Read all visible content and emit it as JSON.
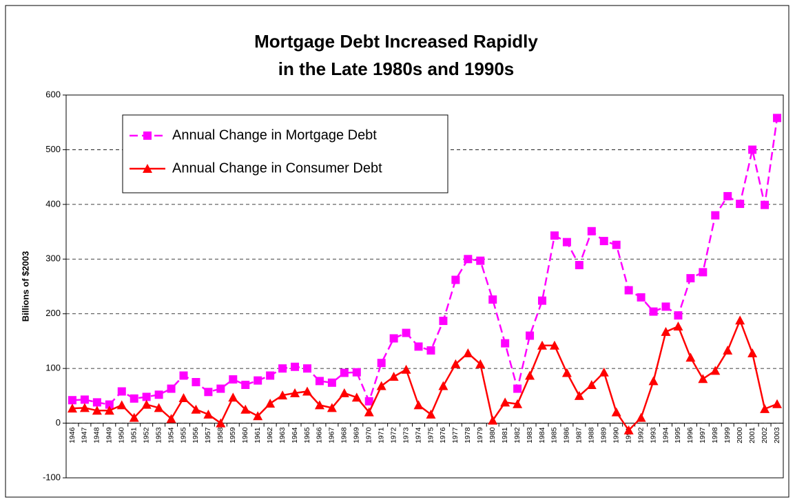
{
  "chart_data": {
    "type": "line",
    "title": [
      "Mortgage Debt Increased Rapidly",
      "in the Late 1980s and 1990s"
    ],
    "y_label": "Billions of $2003",
    "categories": [
      "1946",
      "1947",
      "1948",
      "1949",
      "1950",
      "1951",
      "1952",
      "1953",
      "1954",
      "1955",
      "1956",
      "1957",
      "1958",
      "1959",
      "1960",
      "1961",
      "1962",
      "1963",
      "1964",
      "1965",
      "1966",
      "1967",
      "1968",
      "1969",
      "1970",
      "1971",
      "1972",
      "1973",
      "1974",
      "1975",
      "1976",
      "1977",
      "1978",
      "1979",
      "1980",
      "1981",
      "1982",
      "1983",
      "1984",
      "1985",
      "1986",
      "1987",
      "1988",
      "1989",
      "1990",
      "1991",
      "1992",
      "1993",
      "1994",
      "1995",
      "1996",
      "1997",
      "1998",
      "1999",
      "2000",
      "2001",
      "2002",
      "2003"
    ],
    "series": [
      {
        "name": "Annual Change in Mortgage Debt",
        "color": "#ff00ff",
        "marker": "square",
        "dashed": true,
        "values": [
          42,
          43,
          38,
          34,
          58,
          45,
          48,
          52,
          63,
          87,
          75,
          57,
          63,
          80,
          70,
          78,
          87,
          100,
          103,
          100,
          77,
          74,
          92,
          93,
          40,
          110,
          155,
          165,
          140,
          133,
          187,
          262,
          300,
          297,
          226,
          146,
          63,
          160,
          224,
          343,
          331,
          289,
          351,
          333,
          326,
          243,
          230,
          204,
          213,
          197,
          265,
          276,
          380,
          415,
          401,
          500,
          399,
          558
        ]
      },
      {
        "name": "Annual Change in Consumer Debt",
        "color": "#ff0000",
        "marker": "triangle",
        "dashed": false,
        "values": [
          27,
          28,
          23,
          23,
          33,
          10,
          34,
          28,
          8,
          46,
          25,
          16,
          0,
          47,
          25,
          13,
          36,
          51,
          55,
          58,
          33,
          28,
          55,
          47,
          20,
          68,
          85,
          98,
          33,
          16,
          68,
          108,
          128,
          108,
          5,
          38,
          35,
          87,
          142,
          142,
          92,
          50,
          70,
          93,
          20,
          -13,
          10,
          77,
          167,
          177,
          120,
          81,
          96,
          133,
          188,
          128,
          26,
          35
        ]
      }
    ],
    "ylim": [
      -100,
      600
    ],
    "yticks": [
      -100,
      0,
      100,
      200,
      300,
      400,
      500,
      600
    ],
    "grid": true
  }
}
